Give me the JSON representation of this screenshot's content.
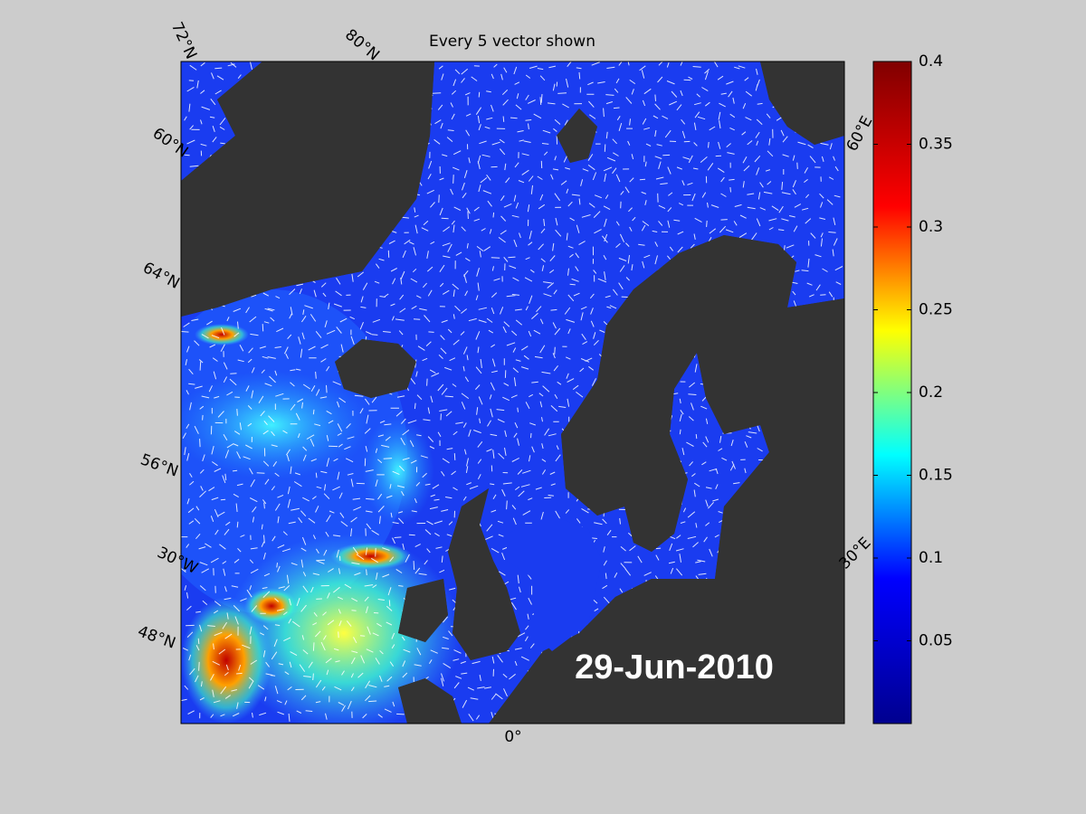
{
  "title": "Every 5 vector shown",
  "date": "29-Jun-2010",
  "graticule_labels": [
    "72°N",
    "80°N",
    "60°N",
    "64°N",
    "56°N",
    "30°W",
    "48°N",
    "0°",
    "30°E",
    "60°E"
  ],
  "colorbar": {
    "lim": [
      0,
      0.4
    ],
    "ticks": [
      0.05,
      0.1,
      0.15,
      0.2,
      0.25,
      0.3,
      0.35,
      0.4
    ],
    "colormap": [
      "#00008f",
      "#0000ff",
      "#00ffff",
      "#ffff00",
      "#ff0000",
      "#800000"
    ]
  },
  "land_color": "#333333",
  "vector_color": "#ffffff"
}
